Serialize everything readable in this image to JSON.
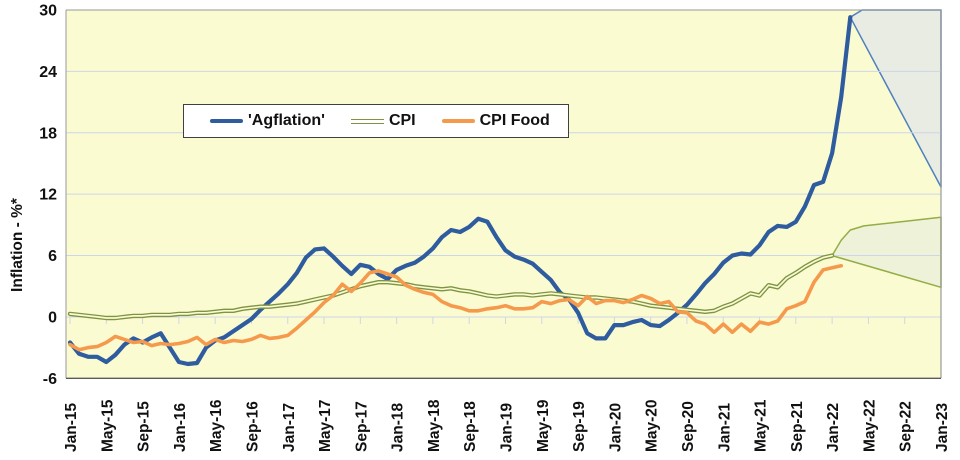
{
  "page": {
    "background": "#ffffff"
  },
  "chart_data": {
    "type": "line",
    "title": "",
    "ylabel": "Inflation - %*",
    "ylim": [
      -6,
      30
    ],
    "y_ticks": [
      30,
      24,
      18,
      12,
      6,
      0,
      -6
    ],
    "x_tick_labels": [
      "Jan-15",
      "May-15",
      "Sep-15",
      "Jan-16",
      "May-16",
      "Sep-16",
      "Jan-17",
      "May-17",
      "Sep-17",
      "Jan-18",
      "May-18",
      "Sep-18",
      "Jan-19",
      "May-19",
      "Sep-19",
      "Jan-20",
      "May-20",
      "Sep-20",
      "Jan-21",
      "May-21",
      "Sep-21",
      "Jan-22",
      "May-22",
      "Sep-22",
      "Jan-23"
    ],
    "x_months_total": 97,
    "x_tick_every_months": 4,
    "x_start_month": "Jan-15",
    "x_end_month": "Jan-23",
    "grid_on": true,
    "colors": {
      "plot_bg": "#fbfbd2",
      "grid": "#ccd6e8",
      "zero_axis": "#ccd6e8",
      "bottom_axis": "#595959",
      "border": "#9a9a9a",
      "label_text": "#111111"
    },
    "legend": {
      "position": "inside-top-left",
      "items": [
        {
          "label": "'Agflation'",
          "color": "#2e5c9e",
          "style": "thick"
        },
        {
          "label": "CPI",
          "color": "#7e9344",
          "style": "double"
        },
        {
          "label": "CPI Food",
          "color": "#f59a4d",
          "style": "solid"
        }
      ]
    },
    "series": [
      {
        "name": "'Agflation'",
        "color": "#2e5c9e",
        "width": 4.2,
        "double_line": false,
        "start_month_index": 0,
        "values": [
          -2.5,
          -3.6,
          -3.9,
          -3.9,
          -4.4,
          -3.7,
          -2.7,
          -2.1,
          -2.5,
          -2.0,
          -1.6,
          -3.0,
          -4.4,
          -4.6,
          -4.5,
          -3.0,
          -2.3,
          -2.0,
          -1.4,
          -0.8,
          -0.2,
          0.7,
          1.5,
          2.3,
          3.2,
          4.3,
          5.8,
          6.6,
          6.7,
          5.9,
          5.0,
          4.2,
          5.1,
          4.9,
          4.2,
          3.7,
          4.6,
          5.0,
          5.3,
          5.9,
          6.7,
          7.8,
          8.5,
          8.3,
          8.8,
          9.6,
          9.3,
          7.8,
          6.5,
          5.9,
          5.6,
          5.2,
          4.4,
          3.6,
          2.4,
          1.7,
          0.4,
          -1.6,
          -2.1,
          -2.1,
          -0.8,
          -0.8,
          -0.5,
          -0.3,
          -0.8,
          -0.9,
          -0.3,
          0.4,
          1.2,
          2.2,
          3.3,
          4.2,
          5.3,
          6.0,
          6.2,
          6.1,
          7.0,
          8.3,
          8.9,
          8.8,
          9.3,
          10.8,
          12.9,
          13.2,
          16.0,
          21.5,
          29.3
        ]
      },
      {
        "name": "CPI",
        "color": "#7e9344",
        "width": 4.4,
        "double_line": true,
        "start_month_index": 0,
        "values": [
          0.3,
          0.2,
          0.1,
          0.0,
          -0.1,
          -0.1,
          0.0,
          0.1,
          0.1,
          0.2,
          0.2,
          0.2,
          0.3,
          0.3,
          0.4,
          0.4,
          0.5,
          0.6,
          0.6,
          0.8,
          0.9,
          1.0,
          1.0,
          1.1,
          1.2,
          1.3,
          1.5,
          1.7,
          1.9,
          2.1,
          2.4,
          2.7,
          3.0,
          3.2,
          3.4,
          3.4,
          3.3,
          3.2,
          3.0,
          2.9,
          2.8,
          2.7,
          2.8,
          2.6,
          2.5,
          2.3,
          2.1,
          2.0,
          2.1,
          2.2,
          2.2,
          2.1,
          2.2,
          2.3,
          2.2,
          2.1,
          2.0,
          1.9,
          1.9,
          1.8,
          1.7,
          1.6,
          1.5,
          1.3,
          1.1,
          1.0,
          0.9,
          0.8,
          0.7,
          0.6,
          0.5,
          0.6,
          1.0,
          1.3,
          1.8,
          2.3,
          2.1,
          3.1,
          2.9,
          3.8,
          4.3,
          4.9,
          5.4,
          5.8,
          6.0
        ]
      },
      {
        "name": "CPI Food",
        "color": "#f59a4d",
        "width": 3.6,
        "double_line": false,
        "start_month_index": 0,
        "values": [
          -2.7,
          -3.2,
          -3.0,
          -2.9,
          -2.5,
          -1.9,
          -2.2,
          -2.5,
          -2.4,
          -2.8,
          -2.6,
          -2.7,
          -2.6,
          -2.4,
          -2.0,
          -2.7,
          -2.2,
          -2.5,
          -2.3,
          -2.4,
          -2.2,
          -1.8,
          -2.1,
          -2.0,
          -1.8,
          -1.1,
          -0.3,
          0.5,
          1.4,
          2.1,
          3.2,
          2.5,
          3.3,
          4.3,
          4.5,
          4.2,
          3.9,
          3.1,
          2.7,
          2.4,
          2.2,
          1.5,
          1.1,
          0.9,
          0.6,
          0.6,
          0.8,
          0.9,
          1.1,
          0.8,
          0.8,
          0.9,
          1.5,
          1.3,
          1.6,
          1.7,
          1.1,
          2.0,
          1.3,
          1.6,
          1.6,
          1.4,
          1.7,
          2.1,
          1.8,
          1.3,
          1.5,
          0.5,
          0.4,
          -0.4,
          -0.7,
          -1.5,
          -0.7,
          -1.5,
          -0.7,
          -1.4,
          -0.5,
          -0.7,
          -0.4,
          0.8,
          1.1,
          1.5,
          3.4,
          4.6,
          4.8,
          5.0
        ]
      }
    ],
    "forecast_fans": [
      {
        "name": "agflation-forecast-fan",
        "series": "'Agflation'",
        "stroke": "#4f81bd",
        "fill": "#e8ece2",
        "upper": [
          [
            86,
            29.3
          ],
          [
            87.3,
            30
          ],
          [
            96,
            30
          ]
        ],
        "lower": [
          [
            86,
            29.3
          ],
          [
            96,
            12.7
          ]
        ]
      },
      {
        "name": "cpi-forecast-fan",
        "series": "CPI",
        "stroke": "#94ad45",
        "fill": "#eef2d9",
        "upper": [
          [
            84,
            6.0
          ],
          [
            85,
            7.5
          ],
          [
            86,
            8.5
          ],
          [
            87.5,
            8.9
          ],
          [
            96,
            9.75
          ]
        ],
        "lower": [
          [
            84,
            6.0
          ],
          [
            96,
            2.9
          ]
        ]
      }
    ]
  }
}
